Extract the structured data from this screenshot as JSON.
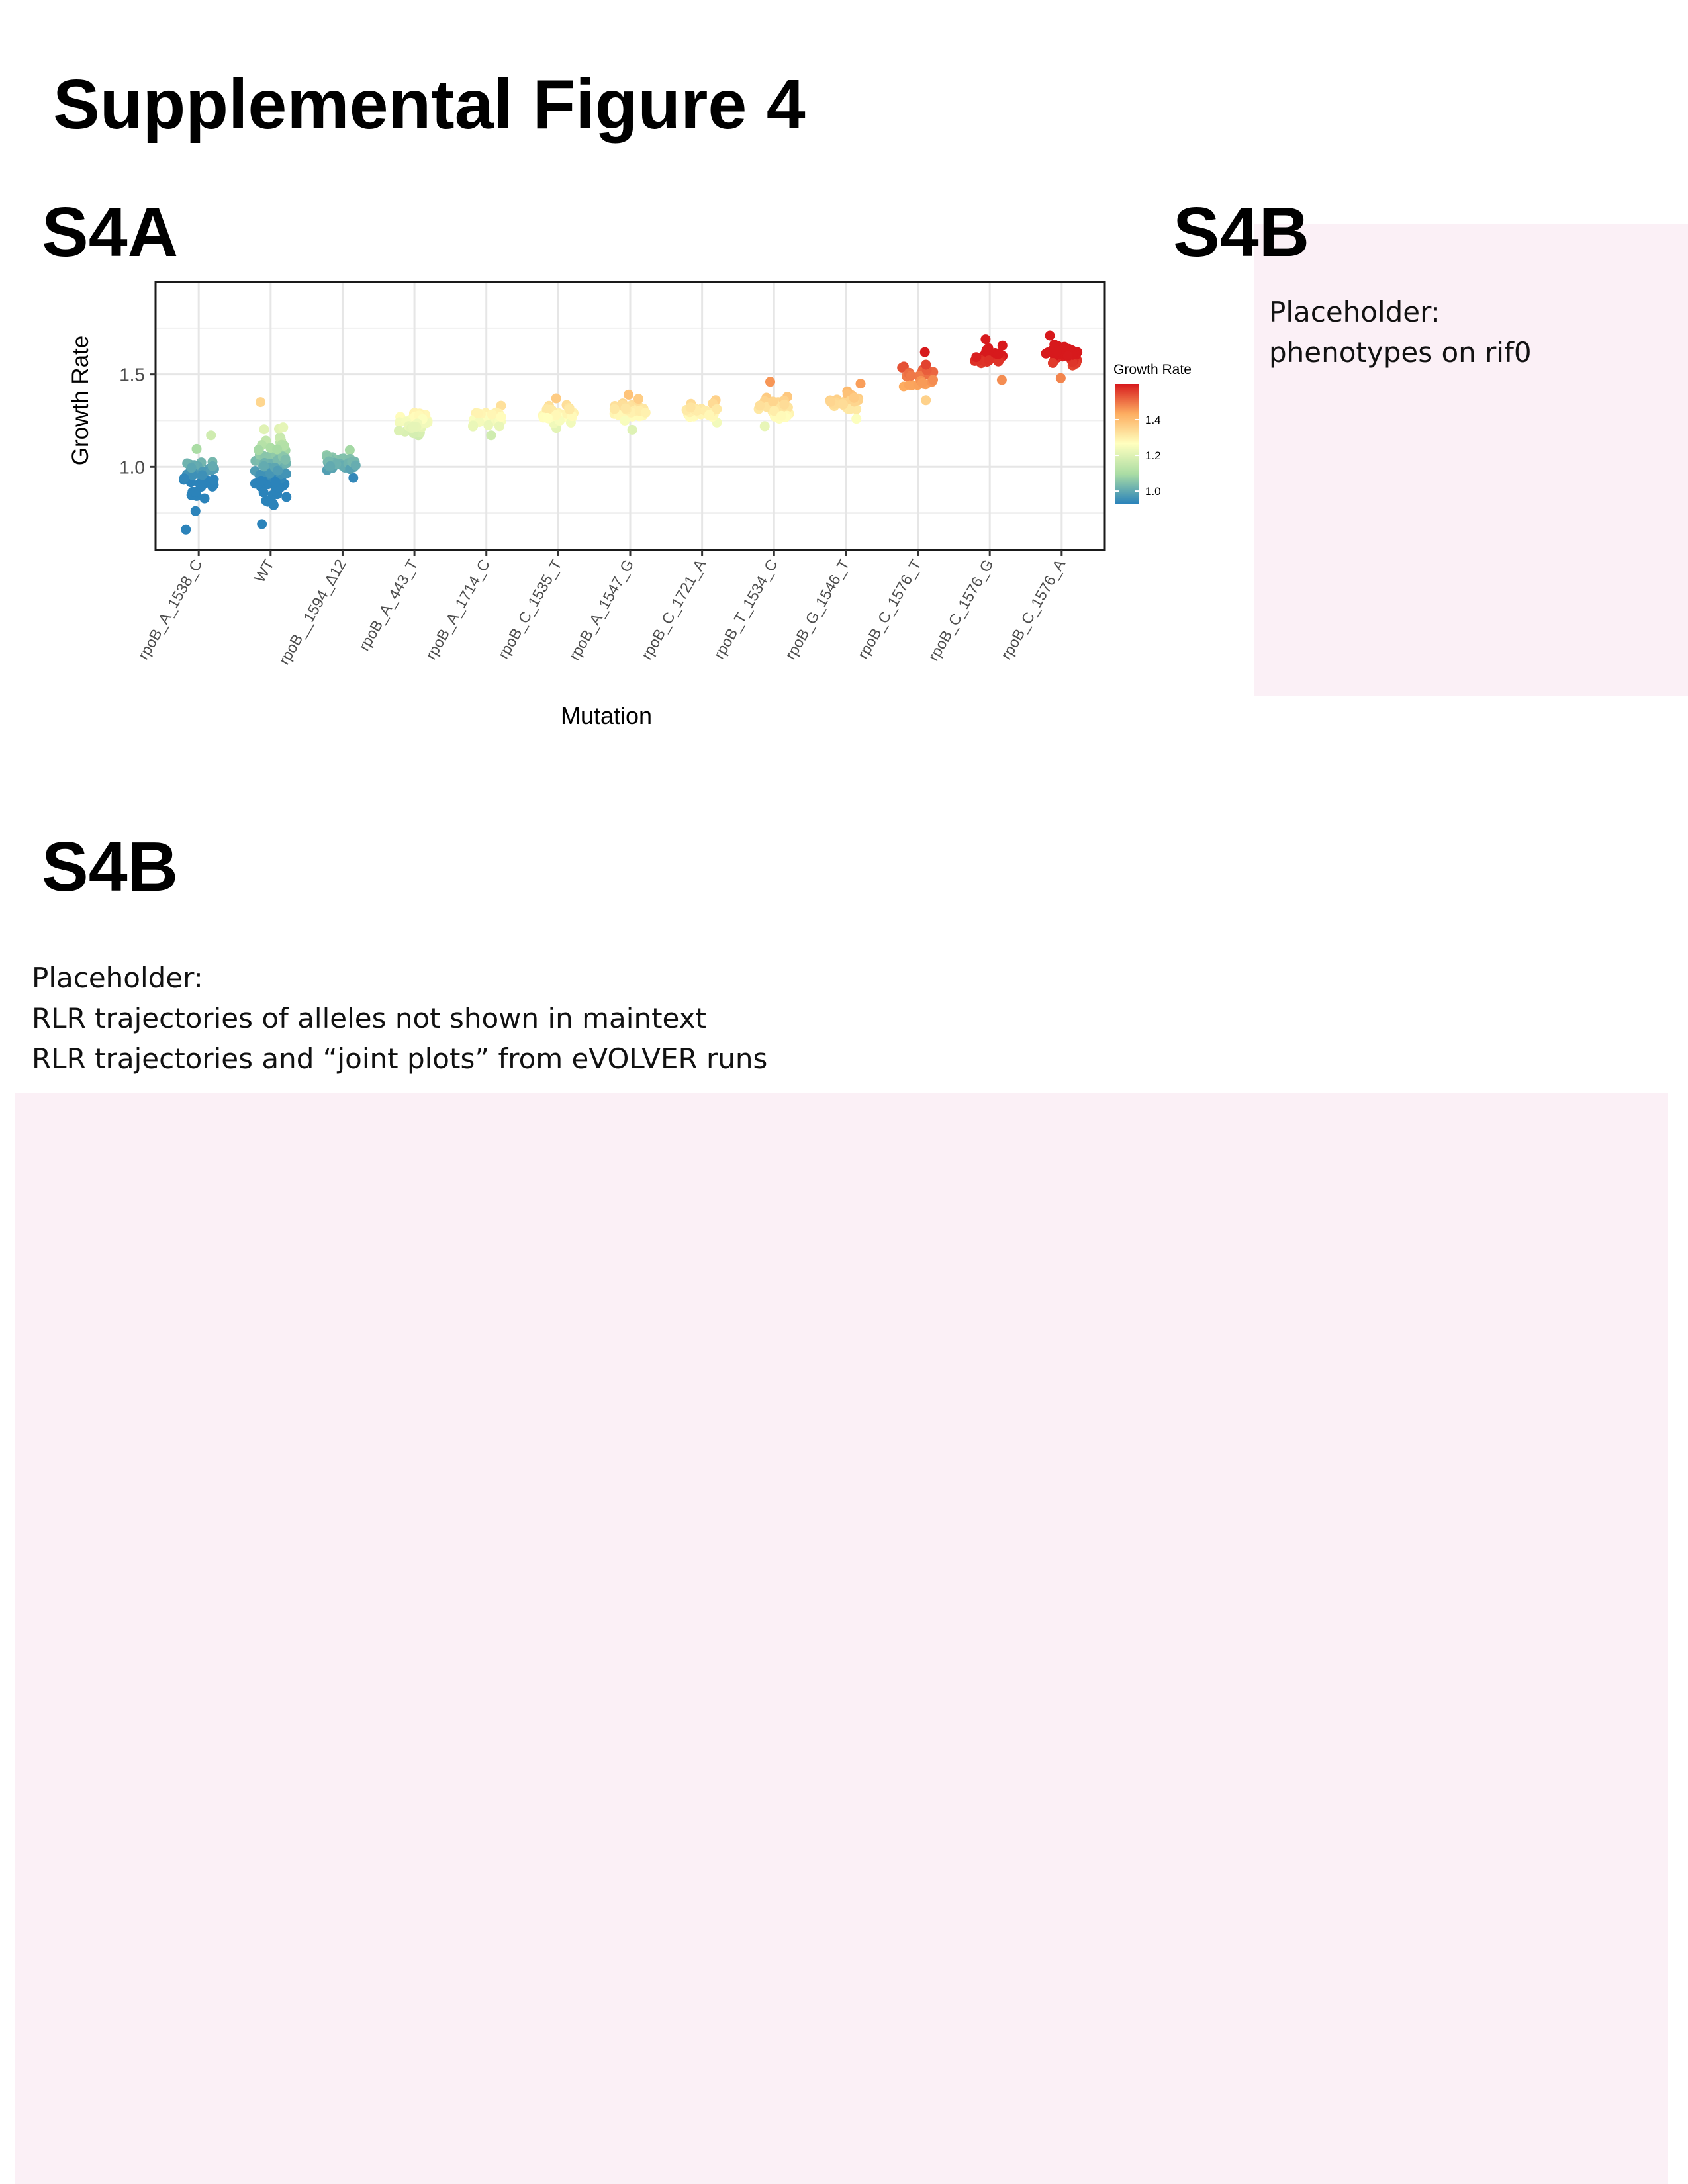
{
  "figure_title": "Supplemental Figure 4",
  "panels": {
    "s4a_label": "S4A",
    "s4b_top_label": "S4B",
    "s4b_bottom_label": "S4B"
  },
  "placeholders": {
    "top_right": {
      "line1": "Placeholder:",
      "line2": "phenotypes on rif0"
    },
    "bottom": {
      "line1": "Placeholder:",
      "line2": "RLR trajectories of alleles not shown in maintext",
      "line3": "RLR trajectories and “joint plots” from eVOLVER runs"
    }
  },
  "colors": {
    "placeholder_bg": "#fbf0f6",
    "colorscale": [
      "#2b83ba",
      "#abdda4",
      "#ffffbf",
      "#fdae61",
      "#d7191c"
    ]
  },
  "chart_data": {
    "type": "scatter",
    "subtype": "jittered strip plot",
    "xlabel": "Mutation",
    "ylabel": "Growth Rate",
    "ylim": [
      0.55,
      2.0
    ],
    "yticks": [
      1.0,
      1.5
    ],
    "ytick_labels": [
      "1.0",
      "1.5"
    ],
    "grid": true,
    "legend": {
      "title": "Growth Rate",
      "type": "colorbar",
      "range": [
        0.93,
        1.6
      ],
      "ticks": [
        1.0,
        1.2,
        1.4
      ],
      "tick_labels": [
        "1.0",
        "1.2",
        "1.4"
      ],
      "placement": "right"
    },
    "categories": [
      "rpoB_A_1538_C",
      "WT",
      "rpoB__1594_Δ12",
      "rpoB_A_443_T",
      "rpoB_A_1714_C",
      "rpoB_C_1535_T",
      "rpoB_A_1547_G",
      "rpoB_C_1721_A",
      "rpoB_T_1534_C",
      "rpoB_G_1546_T",
      "rpoB_C_1576_T",
      "rpoB_C_1576_G",
      "rpoB_C_1576_A"
    ],
    "groups": [
      {
        "category": "rpoB_A_1538_C",
        "mean": 0.94,
        "min": 0.66,
        "max": 1.17,
        "n": 45
      },
      {
        "category": "WT",
        "mean": 1.0,
        "min": 0.69,
        "max": 1.35,
        "n": 80
      },
      {
        "category": "rpoB__1594_Δ12",
        "mean": 1.02,
        "min": 0.94,
        "max": 1.09,
        "n": 40
      },
      {
        "category": "rpoB_A_443_T",
        "mean": 1.24,
        "min": 1.17,
        "max": 1.29,
        "n": 40
      },
      {
        "category": "rpoB_A_1714_C",
        "mean": 1.26,
        "min": 1.17,
        "max": 1.33,
        "n": 30
      },
      {
        "category": "rpoB_C_1535_T",
        "mean": 1.29,
        "min": 1.21,
        "max": 1.37,
        "n": 35
      },
      {
        "category": "rpoB_A_1547_G",
        "mean": 1.3,
        "min": 1.2,
        "max": 1.39,
        "n": 40
      },
      {
        "category": "rpoB_C_1721_A",
        "mean": 1.3,
        "min": 1.24,
        "max": 1.36,
        "n": 35
      },
      {
        "category": "rpoB_T_1534_C",
        "mean": 1.32,
        "min": 1.22,
        "max": 1.46,
        "n": 35
      },
      {
        "category": "rpoB_G_1546_T",
        "mean": 1.35,
        "min": 1.26,
        "max": 1.45,
        "n": 35
      },
      {
        "category": "rpoB_C_1576_T",
        "mean": 1.49,
        "min": 1.36,
        "max": 1.62,
        "n": 30
      },
      {
        "category": "rpoB_C_1576_G",
        "mean": 1.59,
        "min": 1.47,
        "max": 1.69,
        "n": 25
      },
      {
        "category": "rpoB_C_1576_A",
        "mean": 1.6,
        "min": 1.48,
        "max": 1.71,
        "n": 40
      }
    ]
  }
}
